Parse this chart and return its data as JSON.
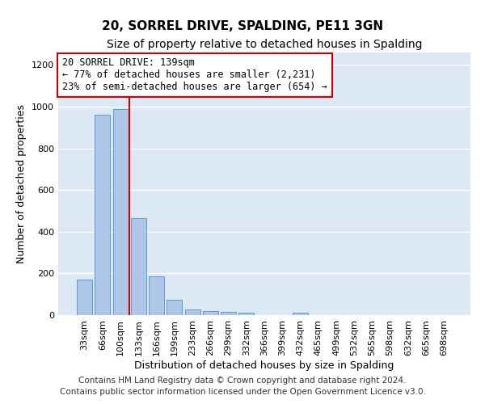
{
  "title1": "20, SORREL DRIVE, SPALDING, PE11 3GN",
  "title2": "Size of property relative to detached houses in Spalding",
  "xlabel": "Distribution of detached houses by size in Spalding",
  "ylabel": "Number of detached properties",
  "categories": [
    "33sqm",
    "66sqm",
    "100sqm",
    "133sqm",
    "166sqm",
    "199sqm",
    "233sqm",
    "266sqm",
    "299sqm",
    "332sqm",
    "366sqm",
    "399sqm",
    "432sqm",
    "465sqm",
    "499sqm",
    "532sqm",
    "565sqm",
    "598sqm",
    "632sqm",
    "665sqm",
    "698sqm"
  ],
  "values": [
    170,
    960,
    990,
    465,
    185,
    75,
    28,
    20,
    15,
    10,
    0,
    0,
    12,
    0,
    0,
    0,
    0,
    0,
    0,
    0,
    0
  ],
  "bar_color": "#aec6e8",
  "bar_edge_color": "#5b9bd5",
  "highlight_line_color": "#cc0000",
  "annotation_line1": "20 SORREL DRIVE: 139sqm",
  "annotation_line2": "← 77% of detached houses are smaller (2,231)",
  "annotation_line3": "23% of semi-detached houses are larger (654) →",
  "annotation_box_color": "#ffffff",
  "annotation_box_edge": "#cc0000",
  "footer_text": "Contains HM Land Registry data © Crown copyright and database right 2024.\nContains public sector information licensed under the Open Government Licence v3.0.",
  "ylim": [
    0,
    1260
  ],
  "yticks": [
    0,
    200,
    400,
    600,
    800,
    1000,
    1200
  ],
  "background_color": "#dde8f5",
  "grid_color": "#ffffff",
  "title1_fontsize": 11,
  "title2_fontsize": 10,
  "xlabel_fontsize": 9,
  "ylabel_fontsize": 9,
  "tick_fontsize": 8,
  "footer_fontsize": 7.5,
  "annotation_fontsize": 8.5
}
